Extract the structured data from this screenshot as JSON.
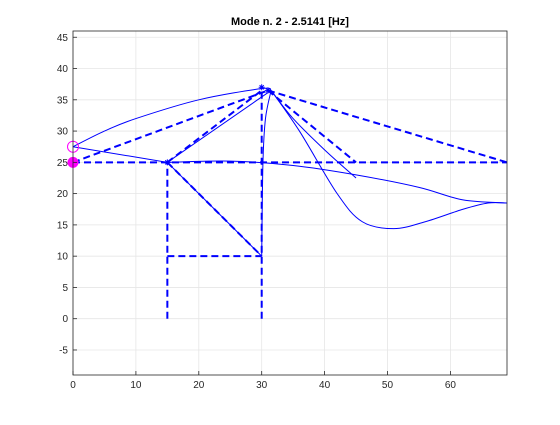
{
  "chart_data": {
    "type": "line",
    "title": "Mode n. 2 - 2.5141 [Hz]",
    "xlabel": "",
    "ylabel": "",
    "xlim": [
      0,
      69
    ],
    "ylim": [
      -9,
      46
    ],
    "xticks": [
      0,
      10,
      20,
      30,
      40,
      50,
      60
    ],
    "yticks": [
      -5,
      0,
      5,
      10,
      15,
      20,
      25,
      30,
      35,
      40,
      45
    ],
    "grid": true,
    "legend": "none",
    "colors": {
      "structure": "#0000FF",
      "marker": "#FF00FF",
      "grid": "#E6E6E6",
      "axes": "#262626"
    },
    "series": [
      {
        "style": "dashed",
        "role": "undeformed-structure",
        "segments": [
          [
            [
              15,
              0
            ],
            [
              15,
              25
            ]
          ],
          [
            [
              30,
              0
            ],
            [
              30,
              36.5
            ]
          ],
          [
            [
              15,
              10
            ],
            [
              30,
              10
            ]
          ],
          [
            [
              15,
              25
            ],
            [
              30,
              10
            ]
          ],
          [
            [
              15,
              25
            ],
            [
              30,
              36.5
            ]
          ],
          [
            [
              0,
              25
            ],
            [
              69,
              25
            ]
          ],
          [
            [
              0,
              25
            ],
            [
              31,
              36.5
            ]
          ],
          [
            [
              31,
              36.5
            ],
            [
              45,
              25
            ]
          ],
          [
            [
              31,
              36.5
            ],
            [
              69,
              25
            ]
          ]
        ]
      },
      {
        "style": "solid",
        "role": "deformed-mode-shape",
        "segments": [
          [
            [
              15,
              25
            ],
            [
              30,
              10
            ]
          ],
          [
            [
              15,
              25
            ],
            [
              31.5,
              36.5
            ]
          ],
          [
            [
              0,
              27.5
            ],
            [
              15,
              25
            ]
          ]
        ],
        "curves": [
          [
            [
              0,
              27.5
            ],
            [
              5,
              30
            ],
            [
              10,
              32
            ],
            [
              20,
              35
            ],
            [
              30,
              36.8
            ],
            [
              31.5,
              36.5
            ]
          ],
          [
            [
              15,
              25
            ],
            [
              25,
              25.2
            ],
            [
              35,
              24.5
            ],
            [
              45,
              23
            ],
            [
              55,
              21
            ],
            [
              62,
              19
            ],
            [
              69,
              18.5
            ]
          ],
          [
            [
              30,
              10
            ],
            [
              30.2,
              25
            ],
            [
              30.6,
              32
            ],
            [
              31.5,
              36.5
            ]
          ],
          [
            [
              31.5,
              36.5
            ],
            [
              35,
              32
            ],
            [
              40,
              27
            ],
            [
              45,
              22.5
            ]
          ],
          [
            [
              31.5,
              36.5
            ],
            [
              36,
              30
            ],
            [
              42,
              20
            ],
            [
              46,
              15.5
            ],
            [
              51,
              14.4
            ],
            [
              56,
              15.5
            ],
            [
              62,
              17.5
            ],
            [
              66,
              18.5
            ],
            [
              69,
              18.5
            ]
          ]
        ]
      }
    ],
    "markers": [
      {
        "role": "support-undeformed",
        "x": 0,
        "y": 25,
        "shape": "filled-circle"
      },
      {
        "role": "support-deformed",
        "x": 0,
        "y": 27.5,
        "shape": "open-circle"
      },
      {
        "role": "node",
        "x": 15,
        "y": 25,
        "shape": "star"
      },
      {
        "role": "node",
        "x": 31,
        "y": 36.5,
        "shape": "star"
      },
      {
        "role": "node",
        "x": 30,
        "y": 37,
        "shape": "star"
      }
    ]
  }
}
